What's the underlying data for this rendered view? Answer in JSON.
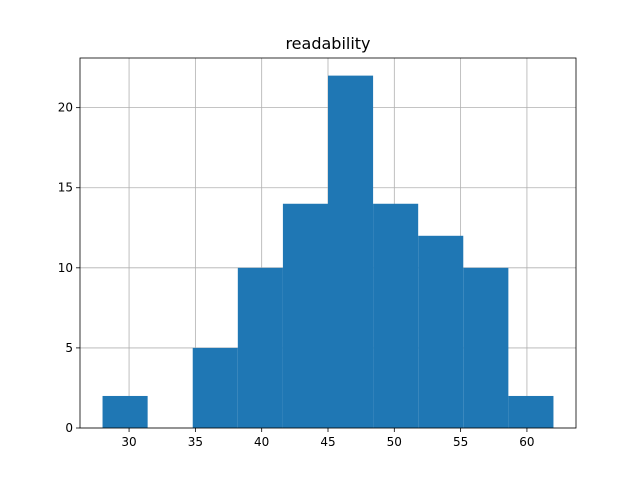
{
  "chart_data": {
    "type": "bar",
    "subtype": "histogram",
    "title": "readability",
    "xlabel": "",
    "ylabel": "",
    "bin_edges": [
      28.0,
      31.4,
      34.8,
      38.2,
      41.6,
      45.0,
      48.4,
      51.8,
      55.2,
      58.6,
      62.0
    ],
    "values": [
      2,
      0,
      5,
      10,
      14,
      22,
      14,
      12,
      10,
      2
    ],
    "xlim": [
      26.3,
      63.7
    ],
    "ylim": [
      0,
      23.1
    ],
    "xticks": [
      30,
      35,
      40,
      45,
      50,
      55,
      60
    ],
    "yticks": [
      0,
      5,
      10,
      15,
      20
    ],
    "grid": true,
    "colors": {
      "bar": "#1f77b4"
    }
  }
}
